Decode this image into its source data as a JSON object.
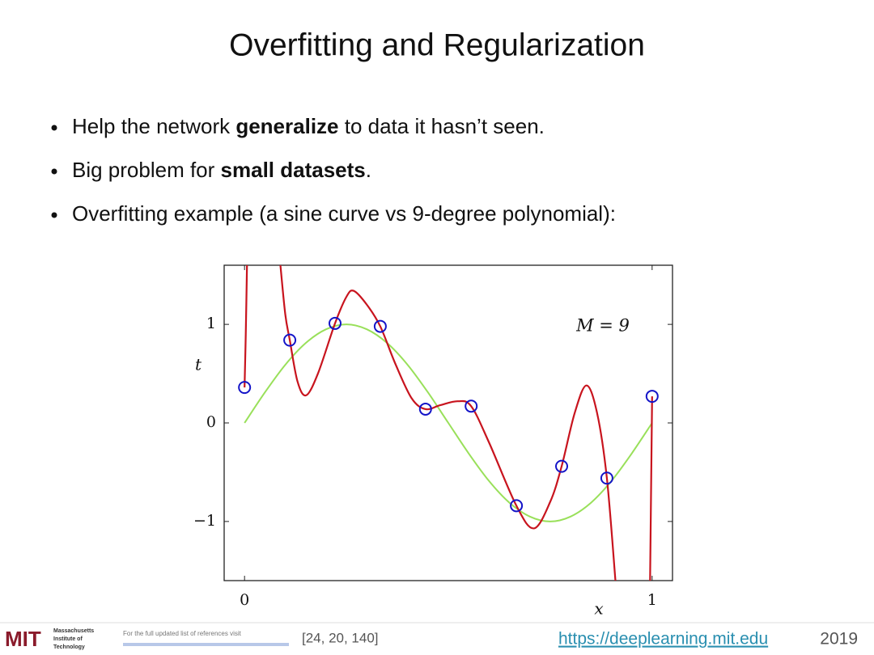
{
  "title": "Overfitting and Regularization",
  "bullets": [
    {
      "parts": [
        {
          "text": "Help the network ",
          "bold": false
        },
        {
          "text": "generalize",
          "bold": true
        },
        {
          "text": " to data it hasn’t seen.",
          "bold": false
        }
      ]
    },
    {
      "parts": [
        {
          "text": "Big problem for ",
          "bold": false
        },
        {
          "text": "small datasets",
          "bold": true
        },
        {
          "text": ".",
          "bold": false
        }
      ]
    },
    {
      "parts": [
        {
          "text": "Overfitting example (a sine curve vs 9-degree polynomial):",
          "bold": false
        }
      ]
    }
  ],
  "chart_data": {
    "type": "line",
    "annotation": "M = 9",
    "xlabel": "x",
    "ylabel": "t",
    "xlim": [
      -0.05,
      1.05
    ],
    "ylim": [
      -1.6,
      1.6
    ],
    "xticks": [
      0,
      1
    ],
    "yticks": [
      {
        "value": -1,
        "label": "−1"
      },
      0,
      1
    ],
    "series": [
      {
        "type": "line",
        "color": "#99e05a",
        "x": [
          0,
          0.05,
          0.1,
          0.15,
          0.2,
          0.25,
          0.3,
          0.35,
          0.4,
          0.45,
          0.5,
          0.55,
          0.6,
          0.65,
          0.7,
          0.75,
          0.8,
          0.85,
          0.9,
          0.95,
          1
        ],
        "values": [
          0,
          0.31,
          0.59,
          0.81,
          0.95,
          1,
          0.95,
          0.81,
          0.59,
          0.31,
          0,
          -0.31,
          -0.59,
          -0.81,
          -0.95,
          -1,
          -0.95,
          -0.81,
          -0.59,
          -0.31,
          0
        ]
      },
      {
        "type": "line",
        "color": "#c8141e",
        "x": [
          0,
          0.003,
          0.006,
          null,
          0.088,
          0.1,
          0.111,
          0.13,
          0.151,
          0.18,
          0.222,
          0.25,
          0.268,
          0.3,
          0.333,
          0.37,
          0.41,
          0.444,
          0.48,
          0.523,
          0.556,
          0.6,
          0.667,
          0.71,
          0.75,
          0.778,
          0.81,
          0.839,
          0.865,
          0.889,
          0.91,
          null,
          0.995,
          1
        ],
        "values": [
          0.36,
          0.9,
          1.6,
          null,
          1.6,
          1.1,
          0.84,
          0.42,
          0.28,
          0.5,
          1.01,
          1.28,
          1.34,
          1.2,
          0.98,
          0.6,
          0.25,
          0.14,
          0.18,
          0.22,
          0.17,
          -0.2,
          -0.84,
          -1.07,
          -0.8,
          -0.44,
          0.1,
          0.38,
          0.1,
          -0.56,
          -1.6,
          null,
          -1.6,
          0.27
        ]
      },
      {
        "type": "scatter",
        "color": "#1414c8",
        "x": [
          0,
          0.111,
          0.222,
          0.333,
          0.444,
          0.556,
          0.667,
          0.778,
          0.889,
          1
        ],
        "values": [
          0.36,
          0.84,
          1.01,
          0.98,
          0.14,
          0.17,
          -0.84,
          -0.44,
          -0.56,
          0.27
        ]
      }
    ]
  },
  "footer": {
    "logo": "MIT",
    "institute": [
      "Massachusetts",
      "Institute of",
      "Technology"
    ],
    "note": "For the full updated list of references visit",
    "refs": "[24, 20, 140]",
    "url": "https://deeplearning.mit.edu",
    "year": "2019"
  }
}
